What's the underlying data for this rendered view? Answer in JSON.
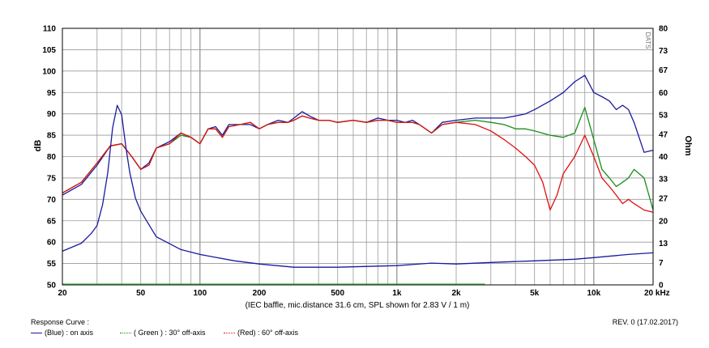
{
  "chart_data": {
    "type": "line",
    "x_scale": "log",
    "xlim": [
      20,
      20000
    ],
    "ylim": [
      50,
      110
    ],
    "y2lim": [
      0,
      80
    ],
    "ylabel": "dB",
    "y2label": "Ohm",
    "x_tick_labels": [
      {
        "v": 20,
        "t": "20"
      },
      {
        "v": 50,
        "t": "50"
      },
      {
        "v": 100,
        "t": "100"
      },
      {
        "v": 200,
        "t": "200"
      },
      {
        "v": 500,
        "t": "500"
      },
      {
        "v": 1000,
        "t": "1k"
      },
      {
        "v": 2000,
        "t": "2k"
      },
      {
        "v": 5000,
        "t": "5k"
      },
      {
        "v": 10000,
        "t": "10k"
      },
      {
        "v": 20000,
        "t": "20 kHz"
      }
    ],
    "y_tick_labels": [
      "50",
      "55",
      "60",
      "65",
      "70",
      "75",
      "80",
      "85",
      "90",
      "95",
      "100",
      "105",
      "110"
    ],
    "y2_tick_labels": [
      {
        "v": 0,
        "t": "0"
      },
      {
        "v": 7,
        "t": "7"
      },
      {
        "v": 13,
        "t": "13"
      },
      {
        "v": 20,
        "t": "20"
      },
      {
        "v": 27,
        "t": "27"
      },
      {
        "v": 33,
        "t": "33"
      },
      {
        "v": 40,
        "t": "40"
      },
      {
        "v": 47,
        "t": "47"
      },
      {
        "v": 53,
        "t": "53"
      },
      {
        "v": 60,
        "t": "60"
      },
      {
        "v": 67,
        "t": "67"
      },
      {
        "v": 73,
        "t": "73"
      },
      {
        "v": 80,
        "t": "80"
      }
    ],
    "grid": true,
    "series": [
      {
        "name": "(Blue) : on axis",
        "color": "#1a1aa0",
        "axis": "left",
        "points": [
          [
            20,
            71
          ],
          [
            25,
            73.5
          ],
          [
            30,
            78
          ],
          [
            35,
            82.5
          ],
          [
            40,
            83
          ],
          [
            45,
            80
          ],
          [
            50,
            77
          ],
          [
            55,
            78.5
          ],
          [
            60,
            82
          ],
          [
            70,
            83.5
          ],
          [
            80,
            85.5
          ],
          [
            90,
            84.5
          ],
          [
            100,
            83
          ],
          [
            110,
            86.5
          ],
          [
            120,
            87
          ],
          [
            130,
            85
          ],
          [
            140,
            87.5
          ],
          [
            160,
            87.5
          ],
          [
            180,
            87.5
          ],
          [
            200,
            86.5
          ],
          [
            220,
            87.5
          ],
          [
            250,
            88.5
          ],
          [
            280,
            88
          ],
          [
            300,
            89
          ],
          [
            330,
            90.5
          ],
          [
            360,
            89.5
          ],
          [
            400,
            88.5
          ],
          [
            450,
            88.5
          ],
          [
            500,
            88
          ],
          [
            600,
            88.5
          ],
          [
            700,
            88
          ],
          [
            800,
            89
          ],
          [
            900,
            88.5
          ],
          [
            1000,
            88.5
          ],
          [
            1100,
            88
          ],
          [
            1200,
            88.5
          ],
          [
            1300,
            87.5
          ],
          [
            1500,
            85.5
          ],
          [
            1700,
            88
          ],
          [
            2000,
            88.5
          ],
          [
            2500,
            89
          ],
          [
            3000,
            89
          ],
          [
            3500,
            89
          ],
          [
            4000,
            89.5
          ],
          [
            4500,
            90
          ],
          [
            5000,
            91
          ],
          [
            6000,
            93
          ],
          [
            7000,
            95
          ],
          [
            8000,
            97.5
          ],
          [
            9000,
            99
          ],
          [
            10000,
            95
          ],
          [
            11000,
            94
          ],
          [
            12000,
            93
          ],
          [
            13000,
            91
          ],
          [
            14000,
            92
          ],
          [
            15000,
            91
          ],
          [
            16000,
            88
          ],
          [
            18000,
            81
          ],
          [
            20000,
            81.5
          ]
        ]
      },
      {
        "name": "( Green ) : 30° off-axis",
        "color": "#1a8c1a",
        "axis": "left",
        "points": [
          [
            20,
            71.5
          ],
          [
            25,
            74
          ],
          [
            30,
            78.5
          ],
          [
            35,
            82.5
          ],
          [
            40,
            83
          ],
          [
            45,
            80
          ],
          [
            50,
            77
          ],
          [
            55,
            78
          ],
          [
            60,
            82
          ],
          [
            70,
            83
          ],
          [
            80,
            85
          ],
          [
            90,
            84.5
          ],
          [
            100,
            83
          ],
          [
            110,
            86.5
          ],
          [
            120,
            86.5
          ],
          [
            130,
            84.5
          ],
          [
            140,
            87
          ],
          [
            160,
            87.5
          ],
          [
            180,
            88
          ],
          [
            200,
            86.5
          ],
          [
            220,
            87.5
          ],
          [
            250,
            88
          ],
          [
            280,
            88
          ],
          [
            300,
            88.5
          ],
          [
            330,
            89.5
          ],
          [
            360,
            89
          ],
          [
            400,
            88.5
          ],
          [
            450,
            88.5
          ],
          [
            500,
            88
          ],
          [
            600,
            88.5
          ],
          [
            700,
            88
          ],
          [
            800,
            88.5
          ],
          [
            900,
            88.5
          ],
          [
            1000,
            88
          ],
          [
            1100,
            88
          ],
          [
            1200,
            88
          ],
          [
            1300,
            87.5
          ],
          [
            1500,
            85.5
          ],
          [
            1700,
            87.5
          ],
          [
            2000,
            88
          ],
          [
            2500,
            88.5
          ],
          [
            3000,
            88
          ],
          [
            3500,
            87.5
          ],
          [
            4000,
            86.5
          ],
          [
            4500,
            86.5
          ],
          [
            5000,
            86
          ],
          [
            6000,
            85
          ],
          [
            7000,
            84.5
          ],
          [
            8000,
            85.5
          ],
          [
            9000,
            91.5
          ],
          [
            10000,
            84
          ],
          [
            11000,
            77
          ],
          [
            12000,
            75
          ],
          [
            13000,
            73
          ],
          [
            14000,
            74
          ],
          [
            15000,
            75
          ],
          [
            16000,
            77
          ],
          [
            18000,
            75
          ],
          [
            20000,
            67.5
          ]
        ]
      },
      {
        "name": "(Red) : 60° off-axis",
        "color": "#e01010",
        "axis": "left",
        "points": [
          [
            20,
            71.5
          ],
          [
            25,
            74
          ],
          [
            30,
            78.5
          ],
          [
            35,
            82.5
          ],
          [
            40,
            83
          ],
          [
            45,
            80
          ],
          [
            50,
            77
          ],
          [
            55,
            78
          ],
          [
            60,
            82
          ],
          [
            70,
            83
          ],
          [
            80,
            85.5
          ],
          [
            90,
            84.5
          ],
          [
            100,
            83
          ],
          [
            110,
            86.5
          ],
          [
            120,
            86.5
          ],
          [
            130,
            84.5
          ],
          [
            140,
            87
          ],
          [
            160,
            87.5
          ],
          [
            180,
            88
          ],
          [
            200,
            86.5
          ],
          [
            220,
            87.5
          ],
          [
            250,
            88
          ],
          [
            280,
            88
          ],
          [
            300,
            88.5
          ],
          [
            330,
            89.5
          ],
          [
            360,
            89
          ],
          [
            400,
            88.5
          ],
          [
            450,
            88.5
          ],
          [
            500,
            88
          ],
          [
            600,
            88.5
          ],
          [
            700,
            88
          ],
          [
            800,
            88.5
          ],
          [
            900,
            88.5
          ],
          [
            1000,
            88
          ],
          [
            1100,
            88
          ],
          [
            1200,
            88
          ],
          [
            1300,
            87.5
          ],
          [
            1500,
            85.5
          ],
          [
            1700,
            87.5
          ],
          [
            2000,
            88
          ],
          [
            2500,
            87.5
          ],
          [
            3000,
            86
          ],
          [
            3500,
            84
          ],
          [
            4000,
            82
          ],
          [
            4500,
            80
          ],
          [
            5000,
            78
          ],
          [
            5500,
            74
          ],
          [
            6000,
            67.5
          ],
          [
            6500,
            71
          ],
          [
            7000,
            76
          ],
          [
            8000,
            80
          ],
          [
            9000,
            85
          ],
          [
            10000,
            80
          ],
          [
            11000,
            75
          ],
          [
            12000,
            73
          ],
          [
            13000,
            71
          ],
          [
            14000,
            69
          ],
          [
            15000,
            70
          ],
          [
            16000,
            69
          ],
          [
            18000,
            67.5
          ],
          [
            20000,
            67
          ]
        ]
      },
      {
        "name": "impedance",
        "color": "#1a1aa0",
        "axis": "right",
        "points": [
          [
            20,
            10.5
          ],
          [
            25,
            13
          ],
          [
            28,
            16
          ],
          [
            30,
            18.5
          ],
          [
            32,
            25
          ],
          [
            34,
            35
          ],
          [
            36,
            49
          ],
          [
            38,
            56
          ],
          [
            40,
            53
          ],
          [
            42,
            43
          ],
          [
            44,
            35
          ],
          [
            47,
            27
          ],
          [
            50,
            23
          ],
          [
            60,
            15
          ],
          [
            80,
            11
          ],
          [
            100,
            9.5
          ],
          [
            150,
            7.5
          ],
          [
            200,
            6.5
          ],
          [
            300,
            5.5
          ],
          [
            500,
            5.5
          ],
          [
            1000,
            6
          ],
          [
            1500,
            6.8
          ],
          [
            2000,
            6.5
          ],
          [
            3000,
            7
          ],
          [
            5000,
            7.5
          ],
          [
            8000,
            8
          ],
          [
            10000,
            8.5
          ],
          [
            15000,
            9.5
          ],
          [
            20000,
            10
          ]
        ]
      },
      {
        "name": "baseline",
        "color": "#2fbf2f",
        "axis": "left",
        "points": [
          [
            20,
            50.2
          ],
          [
            2800,
            50.2
          ]
        ]
      }
    ]
  },
  "labels": {
    "footnote": "(IEC baffle, mic.distance 31.6 cm, SPL shown for 2.83 V / 1 m)",
    "corner_mark": "DATS",
    "response_curve": "Response Curve :",
    "revision": "REV. 0 (17.02.2017)"
  },
  "legend": [
    {
      "text": "(Blue)  : on axis",
      "color": "#1a1aa0"
    },
    {
      "text": "( Green ) : 30° off-axis",
      "color": "#1a8c1a"
    },
    {
      "text": "(Red) : 60° off-axis",
      "color": "#e01010"
    }
  ]
}
